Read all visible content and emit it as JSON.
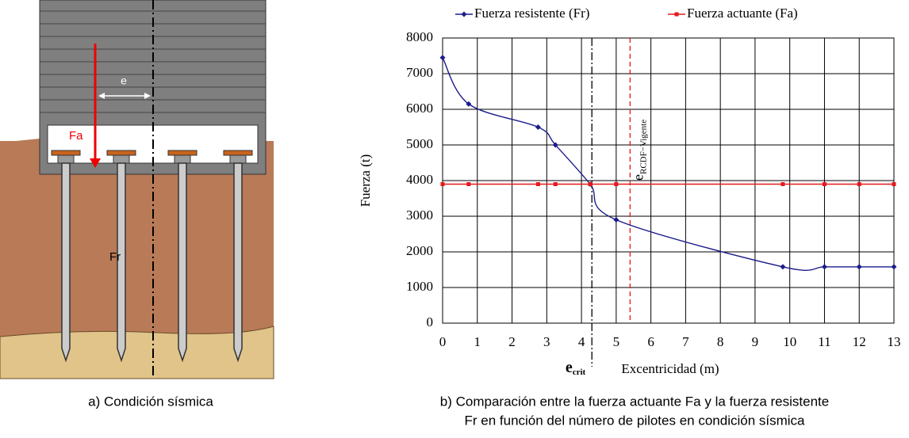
{
  "diagram": {
    "labels": [
      "e",
      "Fa",
      "Fr"
    ]
  },
  "captions": [
    "a) Condición sísmica",
    "b) Comparación entre la fuerza actuante Fa y la fuerza resistente",
    "Fr en función del número de pilotes en condición sísmica"
  ],
  "chart_data": {
    "type": "line",
    "x": [
      0,
      0.75,
      2.75,
      3.25,
      4.25,
      5,
      9.8,
      11,
      12,
      13
    ],
    "series": [
      {
        "name": "Fuerza resistente (Fr)",
        "color": "#1c1c8c",
        "marker": "diamond",
        "values": [
          7450,
          6150,
          5500,
          5000,
          3900,
          2900,
          1580,
          1580,
          1580,
          1580
        ]
      },
      {
        "name": "Fuerza actuante (Fa)",
        "color": "#e41a1c",
        "marker": "square",
        "values": [
          3900,
          3900,
          3900,
          3900,
          3900,
          3900,
          3900,
          3900,
          3900,
          3900
        ]
      }
    ],
    "xlabel": "Excentricidad (m)",
    "ylabel": "Fuerza  (t)",
    "xlim": [
      0,
      13
    ],
    "xticks": [
      0,
      1,
      2,
      3,
      4,
      5,
      6,
      7,
      8,
      9,
      10,
      11,
      12,
      13
    ],
    "ylim": [
      0,
      8000
    ],
    "yticks": [
      0,
      1000,
      2000,
      3000,
      4000,
      5000,
      6000,
      7000,
      8000
    ],
    "grid": true,
    "legend": "top",
    "annotations": [
      {
        "text": "e",
        "sub": "crit",
        "x": 4.3,
        "color": "#000000",
        "style": "dashdot"
      },
      {
        "text": "e",
        "sub": "RCDF−Vigente",
        "x": 5.4,
        "color": "#e41a1c",
        "style": "dashed"
      }
    ]
  }
}
